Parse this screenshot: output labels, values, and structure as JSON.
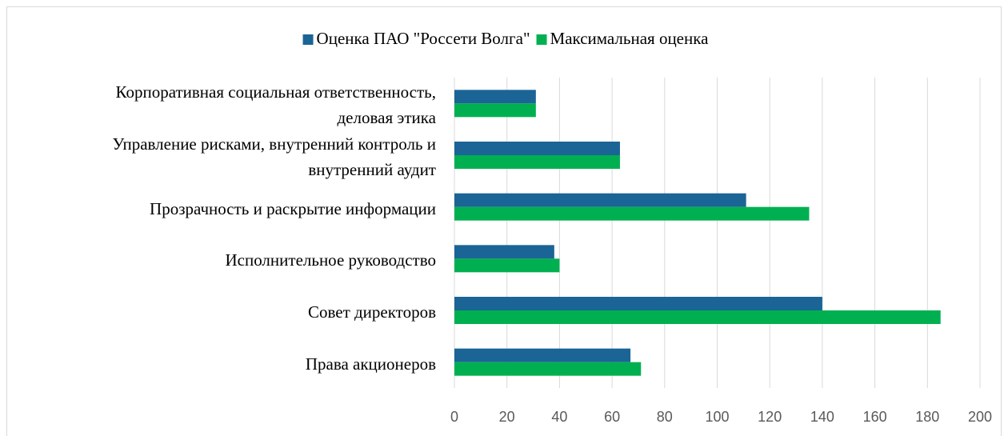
{
  "chart_data": {
    "type": "hbar",
    "categories": [
      "Корпоративная социальная ответственность,\nделовая этика",
      "Управление рисками, внутренний контроль и\nвнутренний аудит",
      "Прозрачность и раскрытие информации",
      "Исполнительное руководство",
      "Совет директоров",
      "Права акционеров"
    ],
    "series": [
      {
        "name": "Оценка ПАО \"Россети Волга\"",
        "color": "#1b6496",
        "values": [
          31,
          63,
          111,
          38,
          140,
          67
        ]
      },
      {
        "name": "Максимальная оценка",
        "color": "#00b050",
        "values": [
          31,
          63,
          135,
          40,
          185,
          71
        ]
      }
    ],
    "xlim": [
      0,
      200
    ],
    "xticks": [
      0,
      20,
      40,
      60,
      80,
      100,
      120,
      140,
      160,
      180,
      200
    ],
    "grid": true,
    "legend": "top"
  }
}
